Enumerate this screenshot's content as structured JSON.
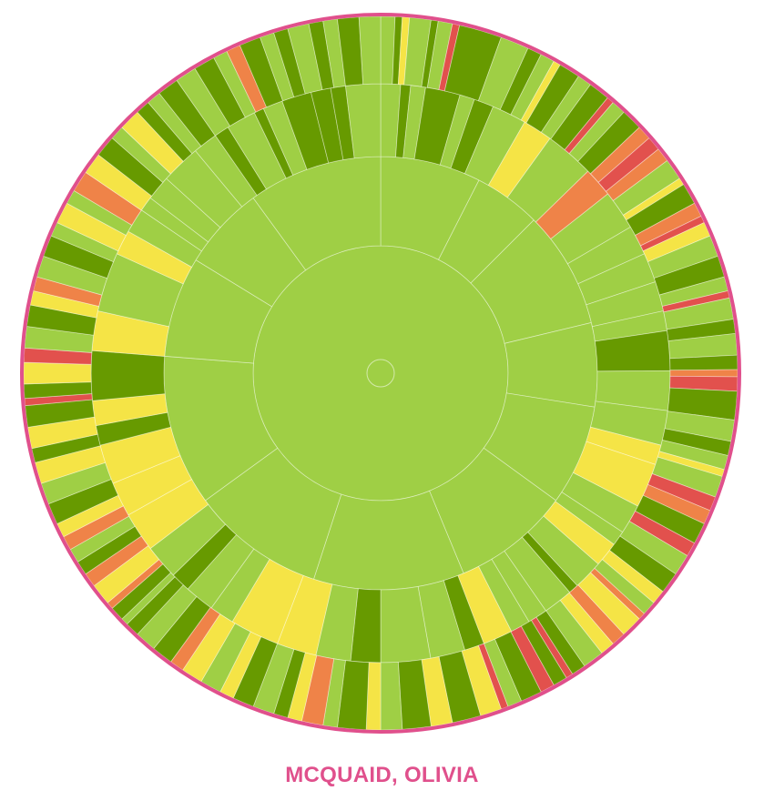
{
  "caption": "MCQUAID, OLIVIA",
  "colors": {
    "accent": "#e0508c",
    "light_green": "#9fcf45",
    "dark_green": "#679a00",
    "yellow": "#f5e446",
    "orange": "#ef8348",
    "red": "#e2514d",
    "separator": "#ffffff"
  },
  "chart_data": {
    "type": "sunburst",
    "title": "",
    "center_label": "",
    "rings": [
      {
        "level": 1,
        "segments": [
          {
            "span": 1,
            "color": "light_green"
          }
        ]
      },
      {
        "level": 2,
        "segments": [
          {
            "span": 30,
            "color": "light_green"
          },
          {
            "span": 20,
            "color": "light_green"
          },
          {
            "span": 35,
            "color": "light_green"
          },
          {
            "span": 25,
            "color": "light_green"
          },
          {
            "span": 30,
            "color": "light_green"
          },
          {
            "span": 35,
            "color": "light_green"
          },
          {
            "span": 45,
            "color": "light_green"
          },
          {
            "span": 40,
            "color": "light_green"
          },
          {
            "span": 45,
            "color": "light_green"
          },
          {
            "span": 30,
            "color": "light_green"
          },
          {
            "span": 25,
            "color": "light_green"
          },
          {
            "span": 40,
            "color": "light_green"
          }
        ]
      },
      {
        "level": 3,
        "segments": [
          {
            "span": 4,
            "color": "light_green"
          },
          {
            "span": 2,
            "color": "dark_green"
          },
          {
            "span": 3,
            "color": "light_green"
          },
          {
            "span": 7,
            "color": "dark_green"
          },
          {
            "span": 3,
            "color": "light_green"
          },
          {
            "span": 4,
            "color": "dark_green"
          },
          {
            "span": 7,
            "color": "light_green"
          },
          {
            "span": 6,
            "color": "yellow"
          },
          {
            "span": 10,
            "color": "light_green"
          },
          {
            "span": 6,
            "color": "orange"
          },
          {
            "span": 8,
            "color": "light_green"
          },
          {
            "span": 6,
            "color": "light_green"
          },
          {
            "span": 6,
            "color": "light_green"
          },
          {
            "span": 6,
            "color": "light_green"
          },
          {
            "span": 4,
            "color": "light_green"
          },
          {
            "span": 8,
            "color": "dark_green"
          },
          {
            "span": 8,
            "color": "light_green"
          },
          {
            "span": 7,
            "color": "light_green"
          },
          {
            "span": 4,
            "color": "yellow"
          },
          {
            "span": 9,
            "color": "yellow"
          },
          {
            "span": 6,
            "color": "light_green"
          },
          {
            "span": 3,
            "color": "light_green"
          },
          {
            "span": 5,
            "color": "yellow"
          },
          {
            "span": 6,
            "color": "light_green"
          },
          {
            "span": 2,
            "color": "dark_green"
          },
          {
            "span": 6,
            "color": "light_green"
          },
          {
            "span": 4,
            "color": "light_green"
          },
          {
            "span": 4,
            "color": "light_green"
          },
          {
            "span": 6,
            "color": "yellow"
          },
          {
            "span": 4,
            "color": "dark_green"
          },
          {
            "span": 7,
            "color": "light_green"
          },
          {
            "span": 10,
            "color": "light_green"
          },
          {
            "span": 6,
            "color": "dark_green"
          },
          {
            "span": 7,
            "color": "light_green"
          },
          {
            "span": 8,
            "color": "yellow"
          },
          {
            "span": 10,
            "color": "yellow"
          },
          {
            "span": 5,
            "color": "light_green"
          },
          {
            "span": 6,
            "color": "light_green"
          },
          {
            "span": 4,
            "color": "dark_green"
          },
          {
            "span": 7,
            "color": "light_green"
          },
          {
            "span": 8,
            "color": "yellow"
          },
          {
            "span": 7,
            "color": "yellow"
          },
          {
            "span": 8,
            "color": "yellow"
          },
          {
            "span": 4,
            "color": "dark_green"
          },
          {
            "span": 5,
            "color": "yellow"
          },
          {
            "span": 10,
            "color": "dark_green"
          },
          {
            "span": 8,
            "color": "yellow"
          },
          {
            "span": 12,
            "color": "light_green"
          },
          {
            "span": 5,
            "color": "yellow"
          },
          {
            "span": 5,
            "color": "light_green"
          },
          {
            "span": 3,
            "color": "light_green"
          },
          {
            "span": 5,
            "color": "light_green"
          },
          {
            "span": 8,
            "color": "light_green"
          },
          {
            "span": 5,
            "color": "light_green"
          },
          {
            "span": 3,
            "color": "dark_green"
          },
          {
            "span": 6,
            "color": "light_green"
          },
          {
            "span": 2,
            "color": "dark_green"
          },
          {
            "span": 4,
            "color": "light_green"
          },
          {
            "span": 6,
            "color": "dark_green"
          },
          {
            "span": 4,
            "color": "dark_green"
          },
          {
            "span": 3,
            "color": "dark_green"
          },
          {
            "span": 7,
            "color": "light_green"
          }
        ]
      },
      {
        "level": 4,
        "segments": [
          {
            "span": 2,
            "color": "light_green"
          },
          {
            "span": 1,
            "color": "dark_green"
          },
          {
            "span": 1,
            "color": "yellow"
          },
          {
            "span": 3,
            "color": "light_green"
          },
          {
            "span": 1,
            "color": "dark_green"
          },
          {
            "span": 2,
            "color": "light_green"
          },
          {
            "span": 1,
            "color": "red"
          },
          {
            "span": 6,
            "color": "dark_green"
          },
          {
            "span": 4,
            "color": "light_green"
          },
          {
            "span": 2,
            "color": "dark_green"
          },
          {
            "span": 2,
            "color": "light_green"
          },
          {
            "span": 1,
            "color": "yellow"
          },
          {
            "span": 3,
            "color": "dark_green"
          },
          {
            "span": 2,
            "color": "light_green"
          },
          {
            "span": 3,
            "color": "dark_green"
          },
          {
            "span": 1,
            "color": "red"
          },
          {
            "span": 2,
            "color": "light_green"
          },
          {
            "span": 3,
            "color": "dark_green"
          },
          {
            "span": 2,
            "color": "orange"
          },
          {
            "span": 2,
            "color": "red"
          },
          {
            "span": 2,
            "color": "orange"
          },
          {
            "span": 3,
            "color": "light_green"
          },
          {
            "span": 1,
            "color": "yellow"
          },
          {
            "span": 3,
            "color": "dark_green"
          },
          {
            "span": 2,
            "color": "orange"
          },
          {
            "span": 1,
            "color": "red"
          },
          {
            "span": 2,
            "color": "yellow"
          },
          {
            "span": 3,
            "color": "light_green"
          },
          {
            "span": 3,
            "color": "dark_green"
          },
          {
            "span": 2,
            "color": "light_green"
          },
          {
            "span": 1,
            "color": "red"
          },
          {
            "span": 3,
            "color": "light_green"
          },
          {
            "span": 2,
            "color": "dark_green"
          },
          {
            "span": 3,
            "color": "light_green"
          },
          {
            "span": 2,
            "color": "dark_green"
          },
          {
            "span": 1,
            "color": "orange"
          },
          {
            "span": 2,
            "color": "red"
          },
          {
            "span": 4,
            "color": "dark_green"
          },
          {
            "span": 3,
            "color": "light_green"
          },
          {
            "span": 2,
            "color": "dark_green"
          },
          {
            "span": 2,
            "color": "light_green"
          },
          {
            "span": 1,
            "color": "yellow"
          },
          {
            "span": 3,
            "color": "light_green"
          },
          {
            "span": 2,
            "color": "red"
          },
          {
            "span": 2,
            "color": "orange"
          },
          {
            "span": 3,
            "color": "dark_green"
          },
          {
            "span": 2,
            "color": "red"
          },
          {
            "span": 3,
            "color": "light_green"
          },
          {
            "span": 3,
            "color": "dark_green"
          },
          {
            "span": 2,
            "color": "yellow"
          },
          {
            "span": 2,
            "color": "light_green"
          },
          {
            "span": 1,
            "color": "orange"
          },
          {
            "span": 3,
            "color": "yellow"
          },
          {
            "span": 2,
            "color": "orange"
          },
          {
            "span": 2,
            "color": "yellow"
          },
          {
            "span": 3,
            "color": "light_green"
          },
          {
            "span": 2,
            "color": "dark_green"
          },
          {
            "span": 1,
            "color": "red"
          },
          {
            "span": 2,
            "color": "dark_green"
          },
          {
            "span": 2,
            "color": "red"
          },
          {
            "span": 3,
            "color": "dark_green"
          },
          {
            "span": 2,
            "color": "light_green"
          },
          {
            "span": 1,
            "color": "red"
          },
          {
            "span": 3,
            "color": "yellow"
          },
          {
            "span": 4,
            "color": "dark_green"
          },
          {
            "span": 3,
            "color": "yellow"
          },
          {
            "span": 4,
            "color": "dark_green"
          },
          {
            "span": 3,
            "color": "light_green"
          },
          {
            "span": 2,
            "color": "yellow"
          },
          {
            "span": 4,
            "color": "dark_green"
          },
          {
            "span": 2,
            "color": "light_green"
          },
          {
            "span": 3,
            "color": "orange"
          },
          {
            "span": 2,
            "color": "yellow"
          },
          {
            "span": 2,
            "color": "dark_green"
          },
          {
            "span": 3,
            "color": "light_green"
          },
          {
            "span": 3,
            "color": "dark_green"
          },
          {
            "span": 2,
            "color": "yellow"
          },
          {
            "span": 3,
            "color": "light_green"
          },
          {
            "span": 3,
            "color": "yellow"
          },
          {
            "span": 2,
            "color": "orange"
          },
          {
            "span": 3,
            "color": "dark_green"
          },
          {
            "span": 3,
            "color": "light_green"
          },
          {
            "span": 2,
            "color": "dark_green"
          },
          {
            "span": 1,
            "color": "light_green"
          },
          {
            "span": 2,
            "color": "dark_green"
          },
          {
            "span": 1,
            "color": "orange"
          },
          {
            "span": 3,
            "color": "yellow"
          },
          {
            "span": 2,
            "color": "orange"
          },
          {
            "span": 2,
            "color": "dark_green"
          },
          {
            "span": 2,
            "color": "light_green"
          },
          {
            "span": 2,
            "color": "orange"
          },
          {
            "span": 2,
            "color": "yellow"
          },
          {
            "span": 3,
            "color": "dark_green"
          },
          {
            "span": 3,
            "color": "light_green"
          },
          {
            "span": 3,
            "color": "yellow"
          },
          {
            "span": 2,
            "color": "dark_green"
          },
          {
            "span": 3,
            "color": "yellow"
          },
          {
            "span": 3,
            "color": "dark_green"
          },
          {
            "span": 1,
            "color": "red"
          },
          {
            "span": 2,
            "color": "dark_green"
          },
          {
            "span": 3,
            "color": "yellow"
          },
          {
            "span": 2,
            "color": "red"
          },
          {
            "span": 3,
            "color": "light_green"
          },
          {
            "span": 3,
            "color": "dark_green"
          },
          {
            "span": 2,
            "color": "yellow"
          },
          {
            "span": 2,
            "color": "orange"
          },
          {
            "span": 3,
            "color": "light_green"
          },
          {
            "span": 3,
            "color": "dark_green"
          },
          {
            "span": 2,
            "color": "light_green"
          },
          {
            "span": 3,
            "color": "yellow"
          },
          {
            "span": 2,
            "color": "light_green"
          },
          {
            "span": 3,
            "color": "orange"
          },
          {
            "span": 3,
            "color": "yellow"
          },
          {
            "span": 3,
            "color": "dark_green"
          },
          {
            "span": 2,
            "color": "light_green"
          },
          {
            "span": 3,
            "color": "yellow"
          },
          {
            "span": 2,
            "color": "dark_green"
          },
          {
            "span": 2,
            "color": "light_green"
          },
          {
            "span": 3,
            "color": "dark_green"
          },
          {
            "span": 3,
            "color": "light_green"
          },
          {
            "span": 3,
            "color": "dark_green"
          },
          {
            "span": 2,
            "color": "light_green"
          },
          {
            "span": 2,
            "color": "orange"
          },
          {
            "span": 3,
            "color": "dark_green"
          },
          {
            "span": 2,
            "color": "light_green"
          },
          {
            "span": 2,
            "color": "dark_green"
          },
          {
            "span": 3,
            "color": "light_green"
          },
          {
            "span": 2,
            "color": "dark_green"
          },
          {
            "span": 2,
            "color": "light_green"
          },
          {
            "span": 3,
            "color": "dark_green"
          },
          {
            "span": 3,
            "color": "light_green"
          }
        ]
      }
    ]
  }
}
